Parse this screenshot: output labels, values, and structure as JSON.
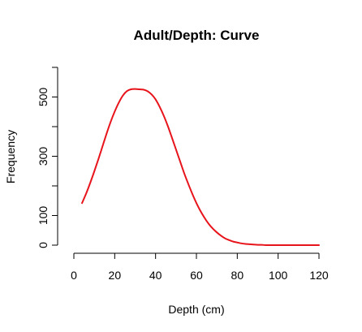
{
  "chart_data": {
    "type": "line",
    "title": "Adult/Depth: Curve",
    "xlabel": "Depth (cm)",
    "ylabel": "Frequency",
    "xlim": [
      0,
      120
    ],
    "ylim": [
      0,
      600
    ],
    "x_ticks": [
      0,
      20,
      40,
      60,
      80,
      100,
      120
    ],
    "x_tick_labels": [
      "0",
      "20",
      "40",
      "60",
      "80",
      "100",
      "120"
    ],
    "y_ticks": [
      0,
      100,
      200,
      300,
      400,
      500,
      600
    ],
    "y_tick_labels": [
      "0",
      "100",
      "",
      "300",
      "",
      "500",
      ""
    ],
    "grid": false,
    "legend": false,
    "series": [
      {
        "color": "#e8141b",
        "x": [
          4,
          6,
          8,
          10,
          12,
          14,
          16,
          18,
          20,
          22,
          24,
          26,
          28,
          30,
          32,
          34,
          36,
          38,
          40,
          42,
          44,
          46,
          48,
          50,
          52,
          54,
          56,
          58,
          60,
          62,
          64,
          66,
          68,
          70,
          72,
          74,
          76,
          78,
          80,
          82,
          84,
          86,
          88,
          90,
          92,
          94,
          96,
          98,
          100,
          102,
          104,
          106,
          108,
          110,
          112,
          114,
          116,
          118,
          120
        ],
        "y": [
          142,
          174,
          210,
          249,
          290,
          333,
          376,
          416,
          451,
          481,
          505,
          520,
          526,
          527,
          526,
          525,
          520,
          509,
          492,
          467,
          437,
          402,
          363,
          323,
          283,
          243,
          207,
          173,
          142,
          115,
          92,
          72,
          56,
          43,
          32,
          23,
          17,
          12,
          9,
          6,
          4,
          3,
          2,
          1,
          1,
          0,
          0,
          0,
          0,
          0,
          0,
          0,
          0,
          0,
          0,
          0,
          0,
          0,
          0
        ]
      }
    ]
  }
}
